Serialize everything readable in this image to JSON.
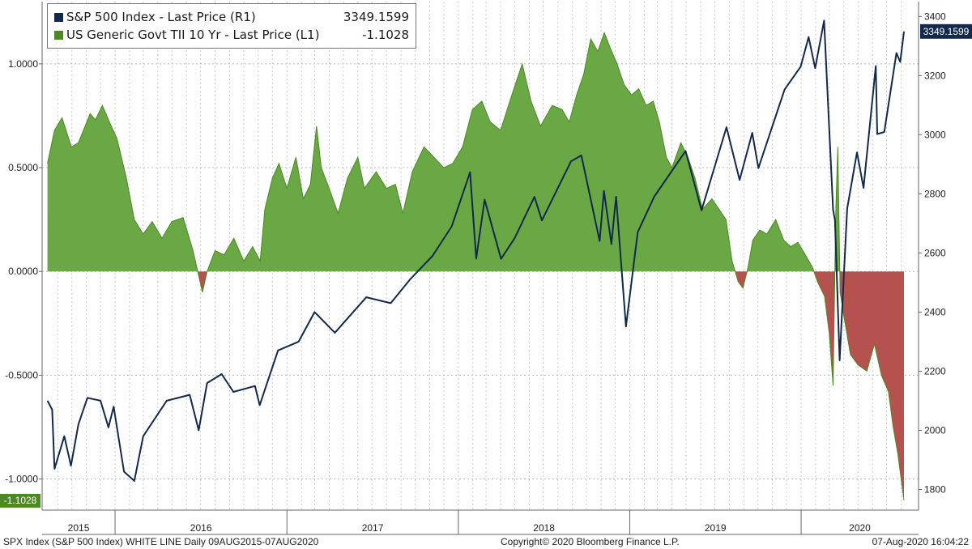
{
  "legend": {
    "sp500_label": "S&P 500 Index - Last Price (R1)",
    "sp500_value": "3349.1599",
    "tips_label": "US Generic Govt TII 10 Yr - Last Price (L1)",
    "tips_value": "-1.1028"
  },
  "footer": {
    "left": "SPX Index (S&P 500 Index) WHITE LINE  Daily 09AUG2015-07AUG2020",
    "center": "Copyright© 2020 Bloomberg Finance L.P.",
    "right": "07-Aug-2020 16:04:22"
  },
  "chart_data": {
    "type": "line",
    "x_axis": {
      "tick_labels": [
        "2015",
        "2016",
        "2017",
        "2018",
        "2019",
        "2020"
      ],
      "range": [
        "2015-08-09",
        "2020-08-07"
      ]
    },
    "left_axis": {
      "ticks": [
        1.0,
        0.5,
        0.0,
        -0.5,
        -1.0
      ],
      "tick_labels": [
        "1.0000",
        "0.5000",
        "0.0000",
        "-0.5000",
        "-1.0000"
      ],
      "range": [
        -1.15,
        1.3
      ]
    },
    "right_axis": {
      "ticks": [
        3400,
        3200,
        3000,
        2800,
        2600,
        2400,
        2200,
        2000,
        1800
      ],
      "tick_labels": [
        "3400",
        "3200",
        "3000",
        "2800",
        "2600",
        "2400",
        "2200",
        "2000",
        "1800"
      ],
      "range": [
        1730,
        3450
      ]
    },
    "grid": true,
    "colors": {
      "sp500": "#13294b",
      "tips_positive": "#6aa845",
      "tips_negative": "#b5514f",
      "tips_badge": "#4a8a21",
      "sp500_badge": "#13294b"
    },
    "series": [
      {
        "name": "S&P 500 Index - Last Price (R1)",
        "axis": "right",
        "last": 3349.1599,
        "last_label": "3349.1599",
        "points": [
          [
            "2015-08-10",
            2100
          ],
          [
            "2015-08-20",
            2070
          ],
          [
            "2015-08-25",
            1870
          ],
          [
            "2015-09-15",
            1980
          ],
          [
            "2015-09-29",
            1880
          ],
          [
            "2015-10-15",
            2020
          ],
          [
            "2015-11-03",
            2110
          ],
          [
            "2015-12-01",
            2100
          ],
          [
            "2015-12-18",
            2010
          ],
          [
            "2015-12-29",
            2080
          ],
          [
            "2016-01-20",
            1860
          ],
          [
            "2016-02-11",
            1829
          ],
          [
            "2016-03-01",
            1980
          ],
          [
            "2016-04-20",
            2100
          ],
          [
            "2016-06-08",
            2120
          ],
          [
            "2016-06-27",
            2000
          ],
          [
            "2016-07-15",
            2160
          ],
          [
            "2016-08-15",
            2190
          ],
          [
            "2016-09-09",
            2130
          ],
          [
            "2016-10-25",
            2150
          ],
          [
            "2016-11-04",
            2085
          ],
          [
            "2016-12-13",
            2270
          ],
          [
            "2017-01-26",
            2300
          ],
          [
            "2017-03-01",
            2400
          ],
          [
            "2017-04-13",
            2330
          ],
          [
            "2017-06-19",
            2450
          ],
          [
            "2017-08-10",
            2430
          ],
          [
            "2017-09-20",
            2510
          ],
          [
            "2017-11-07",
            2590
          ],
          [
            "2017-12-18",
            2690
          ],
          [
            "2018-01-26",
            2873
          ],
          [
            "2018-02-08",
            2581
          ],
          [
            "2018-02-26",
            2780
          ],
          [
            "2018-04-02",
            2580
          ],
          [
            "2018-05-01",
            2650
          ],
          [
            "2018-06-12",
            2790
          ],
          [
            "2018-06-28",
            2710
          ],
          [
            "2018-08-29",
            2910
          ],
          [
            "2018-09-20",
            2930
          ],
          [
            "2018-10-29",
            2640
          ],
          [
            "2018-11-07",
            2810
          ],
          [
            "2018-11-23",
            2630
          ],
          [
            "2018-12-03",
            2790
          ],
          [
            "2018-12-24",
            2351
          ],
          [
            "2019-01-18",
            2670
          ],
          [
            "2019-02-22",
            2790
          ],
          [
            "2019-04-30",
            2945
          ],
          [
            "2019-06-03",
            2744
          ],
          [
            "2019-07-26",
            3025
          ],
          [
            "2019-08-23",
            2847
          ],
          [
            "2019-09-19",
            3006
          ],
          [
            "2019-10-02",
            2887
          ],
          [
            "2019-11-27",
            3153
          ],
          [
            "2019-12-31",
            3230
          ],
          [
            "2020-01-17",
            3330
          ],
          [
            "2020-01-31",
            3225
          ],
          [
            "2020-02-19",
            3386
          ],
          [
            "2020-03-09",
            2746
          ],
          [
            "2020-03-13",
            2711
          ],
          [
            "2020-03-23",
            2237
          ],
          [
            "2020-04-08",
            2750
          ],
          [
            "2020-04-29",
            2940
          ],
          [
            "2020-05-13",
            2820
          ],
          [
            "2020-06-08",
            3232
          ],
          [
            "2020-06-11",
            3002
          ],
          [
            "2020-06-26",
            3009
          ],
          [
            "2020-07-22",
            3276
          ],
          [
            "2020-07-30",
            3246
          ],
          [
            "2020-08-07",
            3349
          ]
        ]
      },
      {
        "name": "US Generic Govt TII 10 Yr - Last Price (L1)",
        "axis": "left",
        "last": -1.1028,
        "last_label": "-1.1028",
        "points": [
          [
            "2015-08-10",
            0.52
          ],
          [
            "2015-08-25",
            0.68
          ],
          [
            "2015-09-10",
            0.74
          ],
          [
            "2015-09-30",
            0.6
          ],
          [
            "2015-10-15",
            0.62
          ],
          [
            "2015-11-09",
            0.76
          ],
          [
            "2015-11-20",
            0.73
          ],
          [
            "2015-12-05",
            0.8
          ],
          [
            "2015-12-20",
            0.72
          ],
          [
            "2016-01-05",
            0.64
          ],
          [
            "2016-01-25",
            0.45
          ],
          [
            "2016-02-11",
            0.25
          ],
          [
            "2016-03-01",
            0.18
          ],
          [
            "2016-03-20",
            0.24
          ],
          [
            "2016-04-10",
            0.16
          ],
          [
            "2016-05-01",
            0.24
          ],
          [
            "2016-05-25",
            0.26
          ],
          [
            "2016-06-15",
            0.1
          ],
          [
            "2016-06-25",
            0.0
          ],
          [
            "2016-07-05",
            -0.1
          ],
          [
            "2016-07-15",
            0.0
          ],
          [
            "2016-08-01",
            0.1
          ],
          [
            "2016-08-20",
            0.08
          ],
          [
            "2016-09-10",
            0.16
          ],
          [
            "2016-10-01",
            0.05
          ],
          [
            "2016-10-20",
            0.12
          ],
          [
            "2016-11-05",
            0.05
          ],
          [
            "2016-11-15",
            0.3
          ],
          [
            "2016-12-01",
            0.45
          ],
          [
            "2016-12-15",
            0.52
          ],
          [
            "2017-01-01",
            0.4
          ],
          [
            "2017-01-20",
            0.55
          ],
          [
            "2017-02-05",
            0.35
          ],
          [
            "2017-02-20",
            0.42
          ],
          [
            "2017-03-05",
            0.7
          ],
          [
            "2017-03-15",
            0.5
          ],
          [
            "2017-04-01",
            0.4
          ],
          [
            "2017-04-20",
            0.28
          ],
          [
            "2017-05-10",
            0.45
          ],
          [
            "2017-06-01",
            0.55
          ],
          [
            "2017-06-15",
            0.4
          ],
          [
            "2017-07-10",
            0.48
          ],
          [
            "2017-08-01",
            0.4
          ],
          [
            "2017-08-20",
            0.42
          ],
          [
            "2017-09-05",
            0.28
          ],
          [
            "2017-09-25",
            0.48
          ],
          [
            "2017-10-20",
            0.6
          ],
          [
            "2017-11-10",
            0.55
          ],
          [
            "2017-12-01",
            0.5
          ],
          [
            "2017-12-20",
            0.52
          ],
          [
            "2018-01-10",
            0.6
          ],
          [
            "2018-01-31",
            0.78
          ],
          [
            "2018-02-20",
            0.82
          ],
          [
            "2018-03-10",
            0.72
          ],
          [
            "2018-04-01",
            0.68
          ],
          [
            "2018-04-25",
            0.85
          ],
          [
            "2018-05-17",
            1.0
          ],
          [
            "2018-06-05",
            0.82
          ],
          [
            "2018-06-25",
            0.7
          ],
          [
            "2018-07-20",
            0.8
          ],
          [
            "2018-08-10",
            0.78
          ],
          [
            "2018-08-25",
            0.72
          ],
          [
            "2018-09-10",
            0.85
          ],
          [
            "2018-09-25",
            0.95
          ],
          [
            "2018-10-10",
            1.12
          ],
          [
            "2018-10-25",
            1.06
          ],
          [
            "2018-11-08",
            1.15
          ],
          [
            "2018-11-20",
            1.08
          ],
          [
            "2018-12-05",
            1.0
          ],
          [
            "2018-12-20",
            0.9
          ],
          [
            "2019-01-05",
            0.85
          ],
          [
            "2019-01-20",
            0.88
          ],
          [
            "2019-02-05",
            0.8
          ],
          [
            "2019-02-20",
            0.82
          ],
          [
            "2019-03-05",
            0.72
          ],
          [
            "2019-03-20",
            0.55
          ],
          [
            "2019-04-01",
            0.5
          ],
          [
            "2019-04-20",
            0.62
          ],
          [
            "2019-05-05",
            0.55
          ],
          [
            "2019-05-20",
            0.45
          ],
          [
            "2019-06-05",
            0.3
          ],
          [
            "2019-06-25",
            0.35
          ],
          [
            "2019-07-10",
            0.3
          ],
          [
            "2019-07-25",
            0.25
          ],
          [
            "2019-08-07",
            0.05
          ],
          [
            "2019-08-20",
            -0.05
          ],
          [
            "2019-08-30",
            -0.08
          ],
          [
            "2019-09-10",
            0.02
          ],
          [
            "2019-09-20",
            0.15
          ],
          [
            "2019-10-05",
            0.2
          ],
          [
            "2019-10-20",
            0.18
          ],
          [
            "2019-11-08",
            0.25
          ],
          [
            "2019-11-25",
            0.15
          ],
          [
            "2019-12-10",
            0.12
          ],
          [
            "2019-12-25",
            0.14
          ],
          [
            "2020-01-10",
            0.08
          ],
          [
            "2020-01-25",
            0.02
          ],
          [
            "2020-02-05",
            -0.05
          ],
          [
            "2020-02-20",
            -0.12
          ],
          [
            "2020-03-01",
            -0.3
          ],
          [
            "2020-03-09",
            -0.55
          ],
          [
            "2020-03-15",
            0.3
          ],
          [
            "2020-03-19",
            0.6
          ],
          [
            "2020-03-24",
            -0.1
          ],
          [
            "2020-03-31",
            -0.2
          ],
          [
            "2020-04-15",
            -0.4
          ],
          [
            "2020-05-01",
            -0.45
          ],
          [
            "2020-05-20",
            -0.48
          ],
          [
            "2020-06-05",
            -0.35
          ],
          [
            "2020-06-20",
            -0.5
          ],
          [
            "2020-07-05",
            -0.58
          ],
          [
            "2020-07-15",
            -0.75
          ],
          [
            "2020-07-25",
            -0.88
          ],
          [
            "2020-08-01",
            -1.0
          ],
          [
            "2020-08-07",
            -1.1028
          ]
        ]
      }
    ]
  }
}
